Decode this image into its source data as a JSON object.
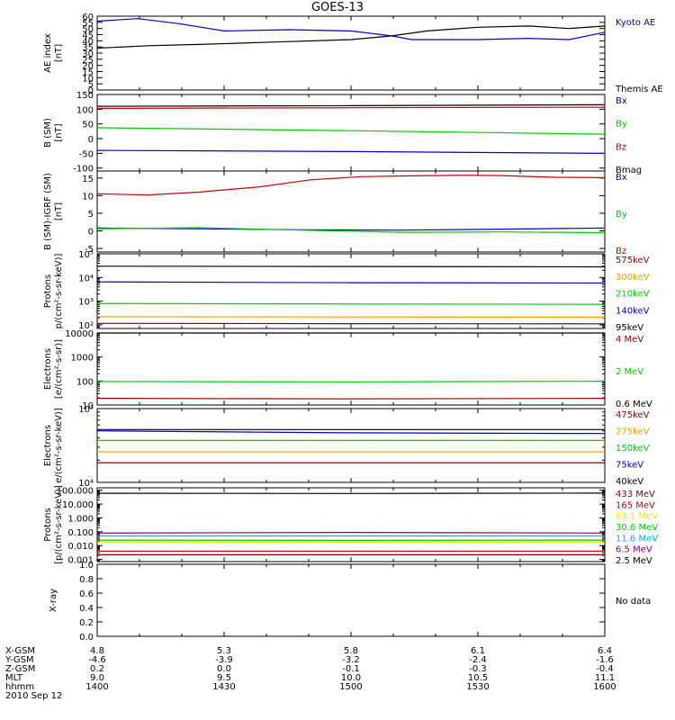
{
  "page_title": "GOES-13",
  "colors": {
    "black": "#000000",
    "blue": "#0000cc",
    "green": "#00cc00",
    "red": "#cc0000",
    "darkred": "#8b0000",
    "orange": "#f0a000",
    "cyan": "#00b0e0",
    "purple": "#800080",
    "yellow": "#e8e800"
  },
  "chart_data": [
    {
      "id": "ae",
      "type": "line",
      "scale": "linear",
      "ylim": [
        0,
        60
      ],
      "ticks": [
        "0",
        "5",
        "10",
        "15",
        "20",
        "25",
        "30",
        "35",
        "40",
        "45",
        "50",
        "55",
        "60"
      ],
      "ylabel": [
        "AE index",
        "[nT]"
      ],
      "legend": [
        {
          "label": "Kyoto AE",
          "color": "blue"
        },
        {
          "label": "Themis AE",
          "color": "black"
        }
      ],
      "series": [
        {
          "name": "Kyoto AE",
          "color": "blue",
          "values": [
            [
              0,
              56
            ],
            [
              0.08,
              58
            ],
            [
              0.16,
              54
            ],
            [
              0.25,
              48
            ],
            [
              0.38,
              49
            ],
            [
              0.5,
              48
            ],
            [
              0.58,
              44
            ],
            [
              0.62,
              41
            ],
            [
              0.75,
              41
            ],
            [
              0.85,
              42
            ],
            [
              0.93,
              41
            ],
            [
              1,
              47
            ]
          ]
        },
        {
          "name": "Themis AE",
          "color": "black",
          "values": [
            [
              0,
              34
            ],
            [
              0.1,
              36
            ],
            [
              0.2,
              37
            ],
            [
              0.35,
              39
            ],
            [
              0.5,
              41
            ],
            [
              0.58,
              44
            ],
            [
              0.65,
              48
            ],
            [
              0.75,
              51
            ],
            [
              0.85,
              52
            ],
            [
              0.93,
              50
            ],
            [
              1,
              52
            ]
          ]
        }
      ]
    },
    {
      "id": "bsm",
      "type": "line",
      "scale": "linear",
      "ylim": [
        -110,
        150
      ],
      "ticks": [
        "-100",
        "-50",
        "0",
        "50",
        "100",
        "150"
      ],
      "ylabel": [
        "B (SM)",
        "[nT]"
      ],
      "legend": [
        {
          "label": "Bx",
          "color": "blue"
        },
        {
          "label": "By",
          "color": "green"
        },
        {
          "label": "Bz",
          "color": "red"
        },
        {
          "label": "Bmag",
          "color": "black"
        }
      ],
      "series": [
        {
          "name": "Bmag",
          "color": "black",
          "values": [
            [
              0,
              110
            ],
            [
              0.5,
              112
            ],
            [
              1,
              115
            ]
          ]
        },
        {
          "name": "Bz",
          "color": "red",
          "values": [
            [
              0,
              103
            ],
            [
              0.5,
              105
            ],
            [
              1,
              107
            ]
          ]
        },
        {
          "name": "By",
          "color": "green",
          "values": [
            [
              0,
              37
            ],
            [
              0.5,
              27
            ],
            [
              1,
              15
            ]
          ]
        },
        {
          "name": "Bx",
          "color": "blue",
          "values": [
            [
              0,
              -40
            ],
            [
              0.5,
              -44
            ],
            [
              1,
              -50
            ]
          ]
        }
      ]
    },
    {
      "id": "bigrf",
      "type": "line",
      "scale": "linear",
      "ylim": [
        -6,
        17
      ],
      "ticks": [
        "-5",
        "0",
        "5",
        "10",
        "15"
      ],
      "ylabel": [
        "B (SM)-IGRF (SM)",
        "[nT]"
      ],
      "legend": [
        {
          "label": "Bx",
          "color": "blue"
        },
        {
          "label": "By",
          "color": "green"
        },
        {
          "label": "Bz",
          "color": "red"
        }
      ],
      "series": [
        {
          "name": "Bz",
          "color": "red",
          "values": [
            [
              0,
              10.5
            ],
            [
              0.1,
              10.2
            ],
            [
              0.2,
              11
            ],
            [
              0.32,
              12.5
            ],
            [
              0.42,
              14.5
            ],
            [
              0.52,
              15.4
            ],
            [
              0.6,
              15.6
            ],
            [
              0.72,
              15.8
            ],
            [
              0.8,
              15.7
            ],
            [
              0.9,
              15.2
            ],
            [
              1,
              15.1
            ]
          ]
        },
        {
          "name": "Bx",
          "color": "blue",
          "values": [
            [
              0,
              0.8
            ],
            [
              0.2,
              0.6
            ],
            [
              0.4,
              0.3
            ],
            [
              0.6,
              0.2
            ],
            [
              0.8,
              0.5
            ],
            [
              1,
              0.8
            ]
          ]
        },
        {
          "name": "By",
          "color": "green",
          "values": [
            [
              0,
              0.6
            ],
            [
              0.2,
              0.9
            ],
            [
              0.4,
              0.2
            ],
            [
              0.6,
              -0.4
            ],
            [
              0.8,
              -0.3
            ],
            [
              1,
              -0.5
            ]
          ]
        }
      ]
    },
    {
      "id": "protons-low",
      "type": "line",
      "scale": "log",
      "ylim": [
        70,
        100000
      ],
      "ticks": [
        "10²",
        "10³",
        "10⁴",
        "10⁵"
      ],
      "tick_values": [
        100,
        1000,
        10000,
        100000
      ],
      "ylabel": [
        "Protons",
        "p/(cm²-s-sr-keV)]"
      ],
      "legend": [
        {
          "label": "575keV",
          "color": "darkred"
        },
        {
          "label": "300keV",
          "color": "orange"
        },
        {
          "label": "210keV",
          "color": "green"
        },
        {
          "label": "140keV",
          "color": "blue"
        },
        {
          "label": "95keV",
          "color": "black"
        }
      ],
      "series": [
        {
          "name": "95keV",
          "color": "black",
          "values": [
            [
              0,
              30000
            ],
            [
              0.5,
              29000
            ],
            [
              1,
              28000
            ]
          ]
        },
        {
          "name": "140keV",
          "color": "blue",
          "values": [
            [
              0,
              6500
            ],
            [
              0.5,
              6000
            ],
            [
              1,
              5800
            ]
          ]
        },
        {
          "name": "210keV",
          "color": "green",
          "values": [
            [
              0,
              800
            ],
            [
              0.5,
              760
            ],
            [
              1,
              740
            ]
          ]
        },
        {
          "name": "300keV",
          "color": "orange",
          "values": [
            [
              0,
              220
            ],
            [
              0.5,
              215
            ],
            [
              1,
              210
            ]
          ]
        },
        {
          "name": "575keV",
          "color": "darkred",
          "values": [
            [
              0,
              115
            ],
            [
              0.5,
              112
            ],
            [
              1,
              110
            ]
          ]
        }
      ]
    },
    {
      "id": "electrons-int",
      "type": "line",
      "scale": "log",
      "ylim": [
        10,
        10000
      ],
      "ticks": [
        "10",
        "100",
        "1000",
        "10000"
      ],
      "tick_values": [
        10,
        100,
        1000,
        10000
      ],
      "ylabel": [
        "Electrons",
        "[e/(cm²-s-sr)]"
      ],
      "legend": [
        {
          "label": "4 MeV",
          "color": "darkred"
        },
        {
          "label": "2 MeV",
          "color": "green"
        },
        {
          "label": "0.6 MeV",
          "color": "black"
        }
      ],
      "series": [
        {
          "name": "0.6 MeV",
          "color": "black",
          "values": [
            [
              0,
              10000
            ],
            [
              1,
              10000
            ]
          ]
        },
        {
          "name": "2 MeV",
          "color": "green",
          "values": [
            [
              0,
              95
            ],
            [
              0.5,
              92
            ],
            [
              1,
              98
            ]
          ]
        },
        {
          "name": "4 MeV",
          "color": "darkred",
          "values": [
            [
              0,
              19
            ],
            [
              0.5,
              18
            ],
            [
              1,
              19
            ]
          ]
        }
      ]
    },
    {
      "id": "electrons-diff",
      "type": "line",
      "scale": "log",
      "ylim": [
        10000,
        100000
      ],
      "ticks": [
        "10⁴",
        "10⁵"
      ],
      "tick_values": [
        10000,
        100000
      ],
      "ylabel": [
        "Electrons",
        "e/(cm²-s-sr-keV)]"
      ],
      "legend": [
        {
          "label": "475keV",
          "color": "darkred"
        },
        {
          "label": "275keV",
          "color": "orange"
        },
        {
          "label": "150keV",
          "color": "green"
        },
        {
          "label": "75keV",
          "color": "blue"
        },
        {
          "label": "40keV",
          "color": "black"
        }
      ],
      "series": [
        {
          "name": "40keV",
          "color": "black",
          "values": [
            [
              0,
              52000
            ],
            [
              1,
              52000
            ]
          ]
        },
        {
          "name": "75keV",
          "color": "blue",
          "values": [
            [
              0,
              50000
            ],
            [
              0.5,
              47000
            ],
            [
              1,
              46000
            ]
          ]
        },
        {
          "name": "150keV",
          "color": "green",
          "values": [
            [
              0,
              37000
            ],
            [
              1,
              37000
            ]
          ]
        },
        {
          "name": "275keV",
          "color": "orange",
          "values": [
            [
              0,
              26000
            ],
            [
              1,
              26000
            ]
          ]
        },
        {
          "name": "475keV",
          "color": "darkred",
          "values": [
            [
              0,
              18500
            ],
            [
              1,
              18500
            ]
          ]
        }
      ]
    },
    {
      "id": "protons-high",
      "type": "line",
      "scale": "log",
      "ylim": [
        0.0007,
        150
      ],
      "ticks": [
        "0.001",
        "0.010",
        "0.100",
        "1.000",
        "10.000",
        "100.000"
      ],
      "tick_values": [
        0.001,
        0.01,
        0.1,
        1,
        10,
        100
      ],
      "ylabel": [
        "Protons",
        "[p/(cm²-s-sr-keV)]"
      ],
      "legend": [
        {
          "label": "433 MeV",
          "color": "darkred"
        },
        {
          "label": "165 MeV",
          "color": "red"
        },
        {
          "label": "63.1 MeV",
          "color": "yellow"
        },
        {
          "label": "30.6 MeV",
          "color": "green"
        },
        {
          "label": "11.6 MeV",
          "color": "cyan"
        },
        {
          "label": "6.5 MeV",
          "color": "purple"
        },
        {
          "label": "2.5 MeV",
          "color": "black"
        }
      ],
      "series": [
        {
          "name": "2.5 MeV",
          "color": "black",
          "values": [
            [
              0,
              60
            ],
            [
              0.5,
              58
            ],
            [
              1,
              62
            ]
          ]
        },
        {
          "name": "6.5 MeV",
          "color": "purple",
          "values": [
            [
              0,
              0.08
            ],
            [
              0.5,
              0.09
            ],
            [
              1,
              0.08
            ]
          ]
        },
        {
          "name": "11.6 MeV",
          "color": "cyan",
          "values": [
            [
              0,
              0.05
            ],
            [
              0.5,
              0.05
            ],
            [
              1,
              0.05
            ]
          ]
        },
        {
          "name": "30.6 MeV",
          "color": "green",
          "values": [
            [
              0,
              0.025
            ],
            [
              0.5,
              0.024
            ],
            [
              1,
              0.025
            ]
          ]
        },
        {
          "name": "63.1 MeV",
          "color": "yellow",
          "values": [
            [
              0,
              0.018
            ],
            [
              0.5,
              0.017
            ],
            [
              1,
              0.018
            ]
          ]
        },
        {
          "name": "165 MeV",
          "color": "red",
          "values": [
            [
              0,
              0.004
            ],
            [
              0.5,
              0.004
            ],
            [
              1,
              0.004
            ]
          ]
        },
        {
          "name": "433 MeV",
          "color": "darkred",
          "values": [
            [
              0,
              0.0022
            ],
            [
              0.5,
              0.0022
            ],
            [
              1,
              0.0022
            ]
          ]
        }
      ]
    },
    {
      "id": "xray",
      "type": "line",
      "scale": "linear",
      "ylim": [
        0,
        1
      ],
      "ticks": [
        "0.0",
        "0.2",
        "0.4",
        "0.6",
        "0.8",
        "1.0"
      ],
      "ylabel": [
        "X-ray"
      ],
      "legend": [],
      "series": [],
      "no_data_label": "No data"
    }
  ],
  "footer": {
    "row_labels": [
      "X-GSM",
      "Y-GSM",
      "Z-GSM",
      "MLT",
      "hhmm"
    ],
    "columns": [
      [
        "4.8",
        "-4.6",
        "0.2",
        "9.0",
        "1400"
      ],
      [
        "5.3",
        "-3.9",
        "0.0",
        "9.5",
        "1430"
      ],
      [
        "5.8",
        "-3.2",
        "-0.1",
        "10.0",
        "1500"
      ],
      [
        "6.1",
        "-2.4",
        "-0.3",
        "10.5",
        "1530"
      ],
      [
        "6.4",
        "-1.6",
        "-0.4",
        "11.1",
        "1600"
      ]
    ],
    "date": "2010 Sep 12"
  }
}
